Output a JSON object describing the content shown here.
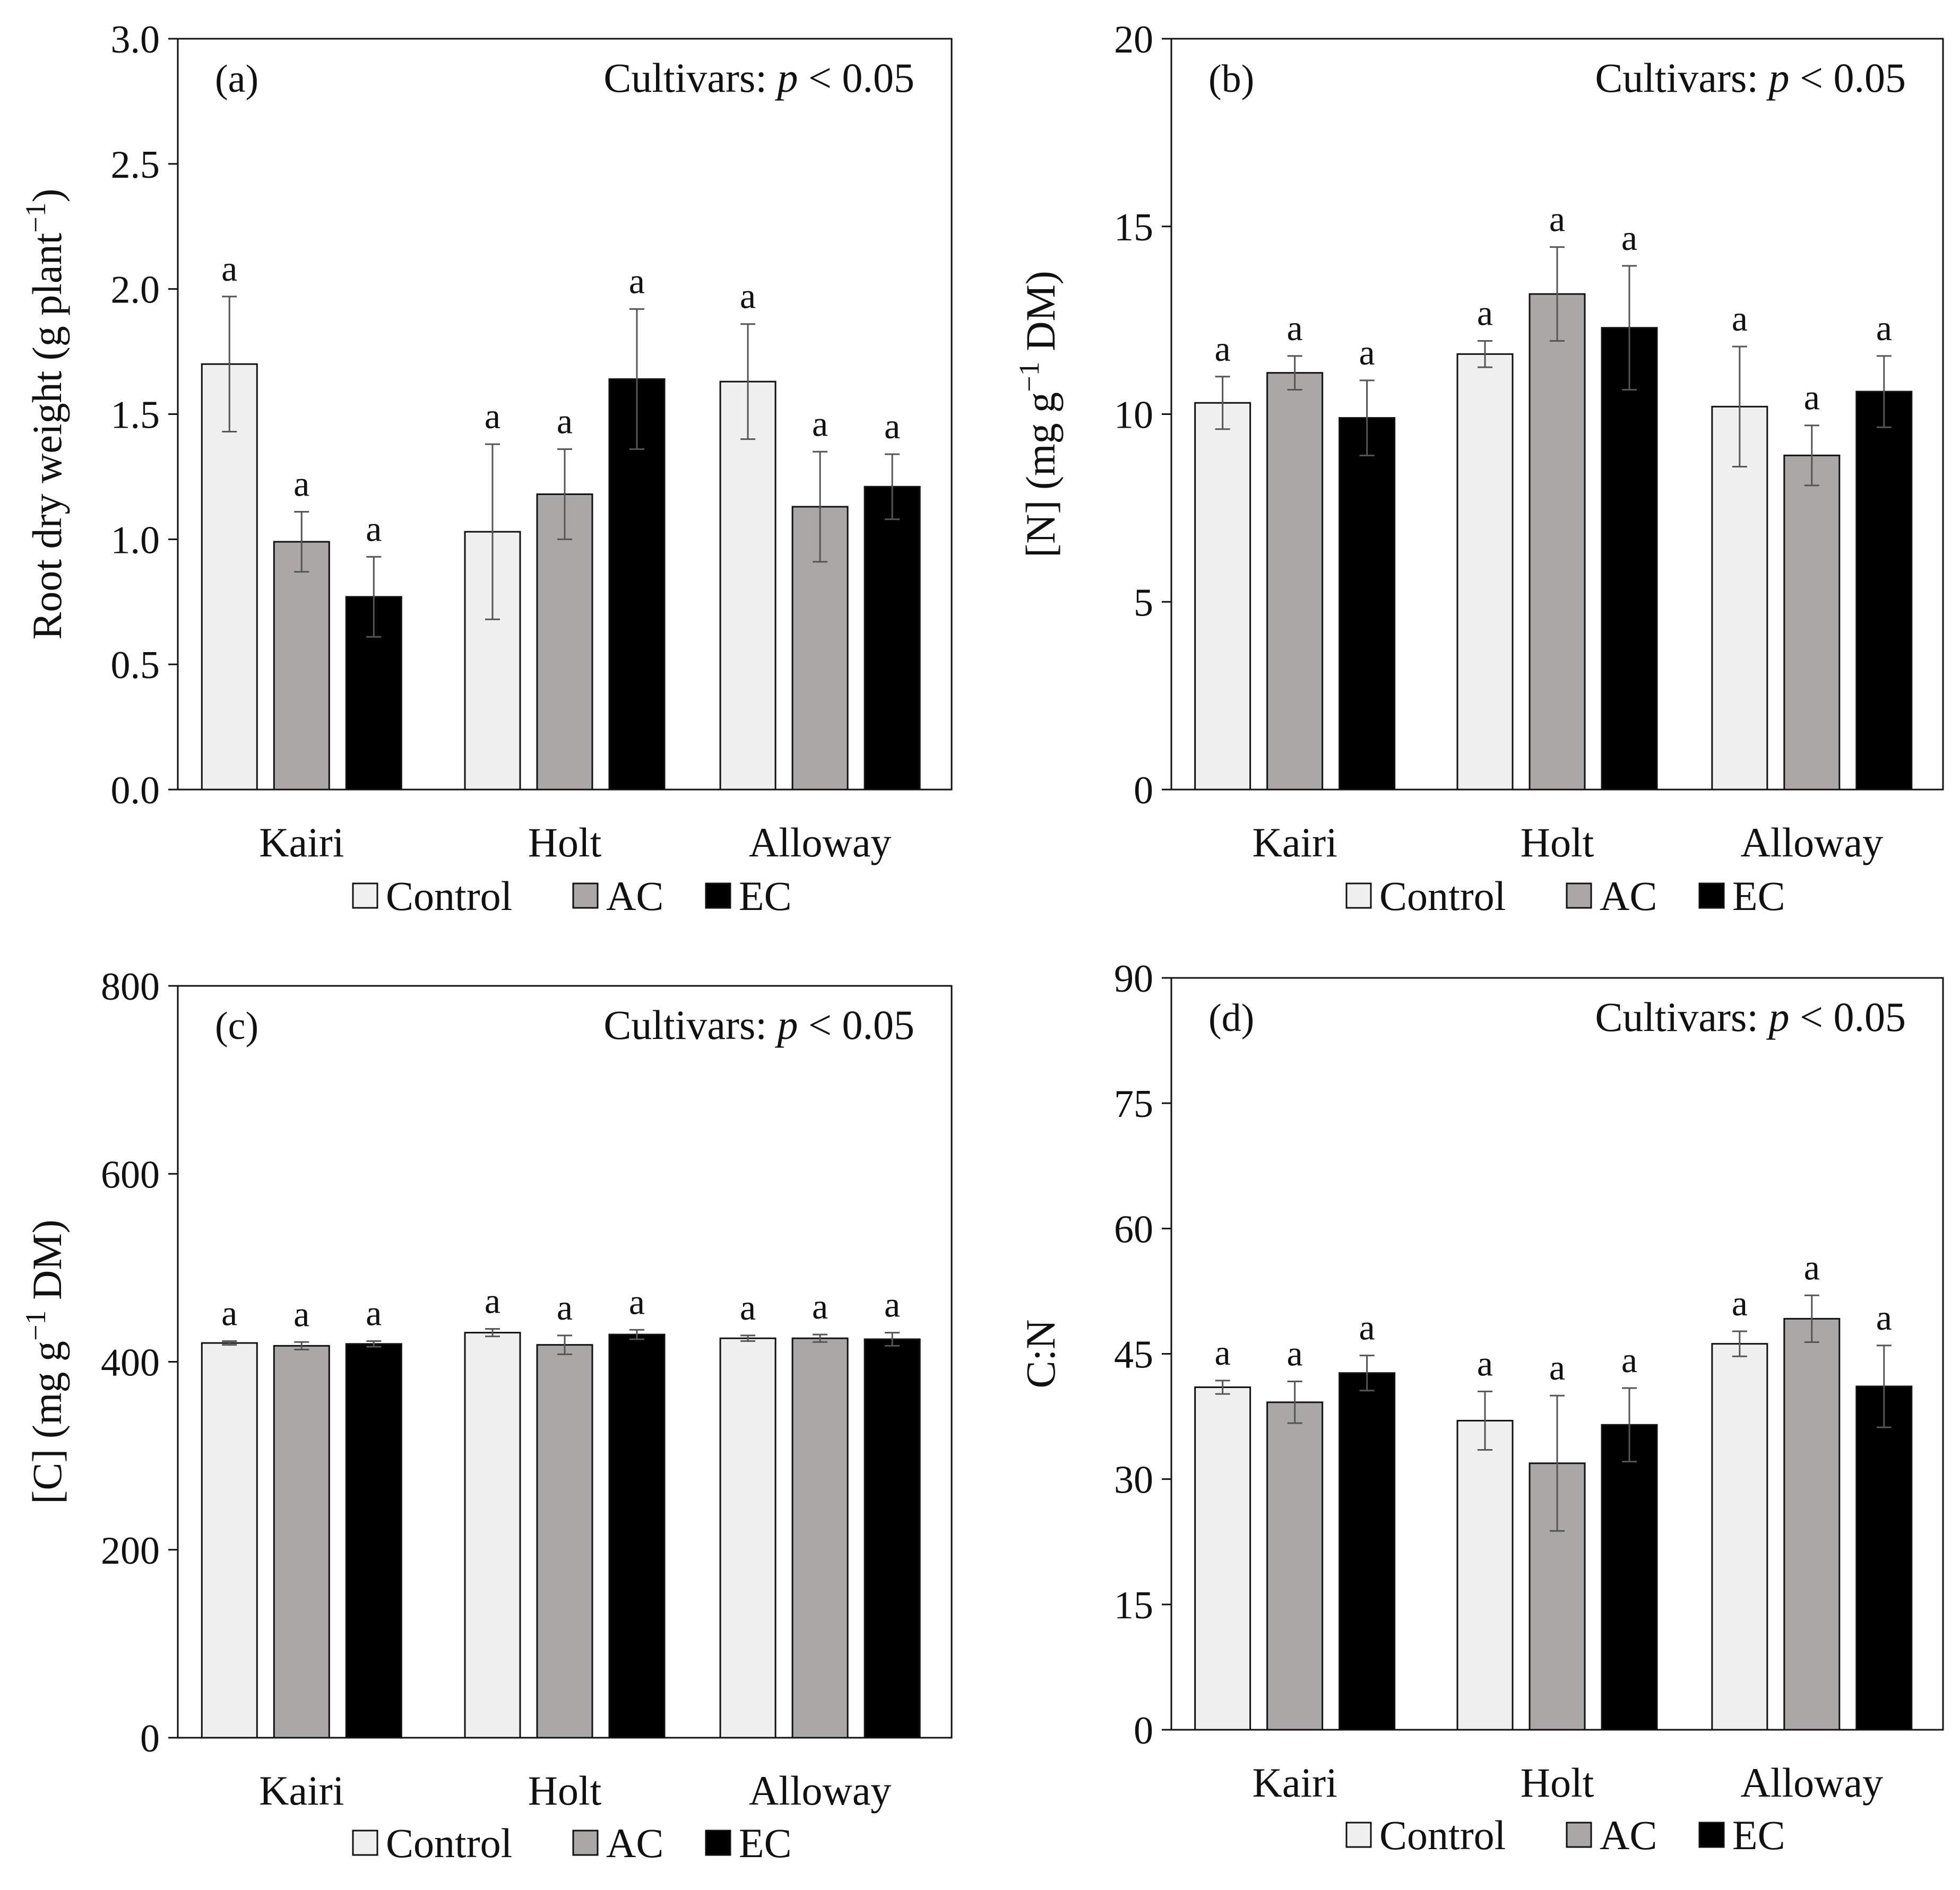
{
  "figure_domain": "Chart",
  "colors": {
    "Control": "#f0f0f0",
    "AC": "#aaa7a7",
    "EC": "#000000",
    "outline": "#111111",
    "errorbar": "#555555"
  },
  "legend": [
    "Control",
    "AC",
    "EC"
  ],
  "chart_data": [
    {
      "panel": "(a)",
      "type": "bar",
      "title": "",
      "stat_label": "Cultivars:",
      "stat_italic": "p",
      "stat_value": "< 0.05",
      "xlabel": "",
      "ylabel_html": "Root dry weight (g plant<tspan dy='-28' font-size='52'>−1</tspan><tspan dy='28'>)</tspan>",
      "ylabel": "Root dry weight (g plant−1)",
      "ylim": [
        0,
        3.0
      ],
      "yticks": [
        "0.0",
        "0.5",
        "1.0",
        "1.5",
        "2.0",
        "2.5",
        "3.0"
      ],
      "categories": [
        "Kairi",
        "Holt",
        "Alloway"
      ],
      "series": [
        {
          "name": "Control",
          "values": [
            1.7,
            1.03,
            1.63
          ],
          "errors": [
            0.27,
            0.35,
            0.23
          ],
          "letters": [
            "a",
            "a",
            "a"
          ]
        },
        {
          "name": "AC",
          "values": [
            0.99,
            1.18,
            1.13
          ],
          "errors": [
            0.12,
            0.18,
            0.22
          ],
          "letters": [
            "a",
            "a",
            "a"
          ]
        },
        {
          "name": "EC",
          "values": [
            0.77,
            1.64,
            1.21
          ],
          "errors": [
            0.16,
            0.28,
            0.13
          ],
          "letters": [
            "a",
            "a",
            "a"
          ]
        }
      ]
    },
    {
      "panel": "(b)",
      "type": "bar",
      "title": "",
      "stat_label": "Cultivars:",
      "stat_italic": "p",
      "stat_value": "< 0.05",
      "xlabel": "",
      "ylabel": "[N] (mg g−1 DM)",
      "ylim": [
        0,
        20
      ],
      "yticks": [
        "0",
        "5",
        "10",
        "15",
        "20"
      ],
      "categories": [
        "Kairi",
        "Holt",
        "Alloway"
      ],
      "series": [
        {
          "name": "Control",
          "values": [
            10.3,
            11.6,
            10.2
          ],
          "errors": [
            0.7,
            0.35,
            1.6
          ],
          "letters": [
            "a",
            "a",
            "a"
          ]
        },
        {
          "name": "AC",
          "values": [
            11.1,
            13.2,
            8.9
          ],
          "errors": [
            0.45,
            1.25,
            0.8
          ],
          "letters": [
            "a",
            "a",
            "a"
          ]
        },
        {
          "name": "EC",
          "values": [
            9.9,
            12.3,
            10.6
          ],
          "errors": [
            1.0,
            1.65,
            0.95
          ],
          "letters": [
            "a",
            "a",
            "a"
          ]
        }
      ]
    },
    {
      "panel": "(c)",
      "type": "bar",
      "title": "",
      "stat_label": "Cultivars:",
      "stat_italic": "p",
      "stat_value": "< 0.05",
      "xlabel": "",
      "ylabel": "[C] (mg g−1 DM)",
      "ylim": [
        0,
        800
      ],
      "yticks": [
        "0",
        "200",
        "400",
        "600",
        "800"
      ],
      "categories": [
        "Kairi",
        "Holt",
        "Alloway"
      ],
      "series": [
        {
          "name": "Control",
          "values": [
            420,
            431,
            425
          ],
          "errors": [
            2,
            4,
            3
          ],
          "letters": [
            "a",
            "a",
            "a"
          ]
        },
        {
          "name": "AC",
          "values": [
            417,
            418,
            425
          ],
          "errors": [
            4,
            10,
            4
          ],
          "letters": [
            "a",
            "a",
            "a"
          ]
        },
        {
          "name": "EC",
          "values": [
            419,
            429,
            424
          ],
          "errors": [
            3,
            5,
            7
          ],
          "letters": [
            "a",
            "a",
            "a"
          ]
        }
      ]
    },
    {
      "panel": "(d)",
      "type": "bar",
      "title": "",
      "stat_label": "Cultivars:",
      "stat_italic": "p",
      "stat_value": "< 0.05",
      "xlabel": "",
      "ylabel": "C:N",
      "ylim": [
        0,
        90
      ],
      "yticks": [
        "0",
        "15",
        "30",
        "45",
        "60",
        "75",
        "90"
      ],
      "categories": [
        "Kairi",
        "Holt",
        "Alloway"
      ],
      "series": [
        {
          "name": "Control",
          "values": [
            41.0,
            37.0,
            46.2
          ],
          "errors": [
            0.8,
            3.5,
            1.5
          ],
          "letters": [
            "a",
            "a",
            "a"
          ]
        },
        {
          "name": "AC",
          "values": [
            39.2,
            31.9,
            49.2
          ],
          "errors": [
            2.5,
            8.1,
            2.8
          ],
          "letters": [
            "a",
            "a",
            "a"
          ]
        },
        {
          "name": "EC",
          "values": [
            42.7,
            36.5,
            41.1
          ],
          "errors": [
            2.1,
            4.4,
            4.9
          ],
          "letters": [
            "a",
            "a",
            "a"
          ]
        }
      ]
    }
  ]
}
